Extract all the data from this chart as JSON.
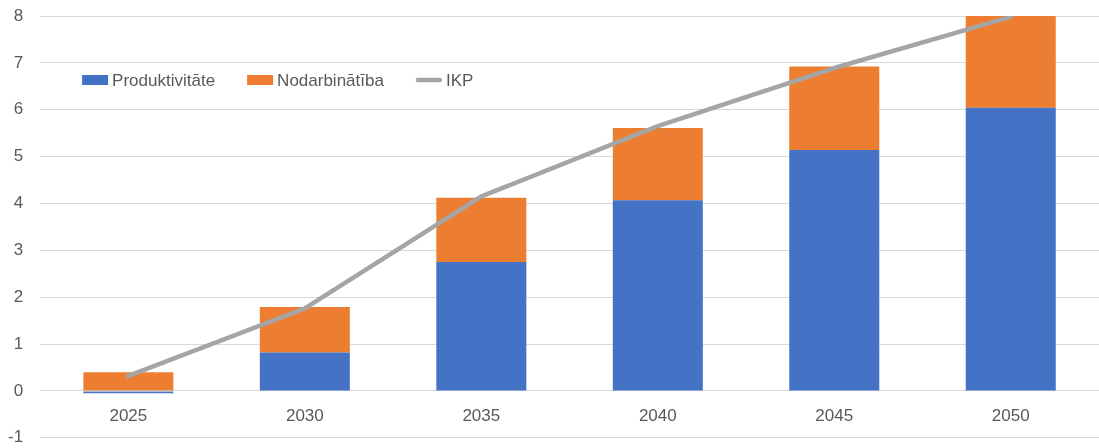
{
  "chart_data": {
    "type": "bar",
    "stacked": true,
    "categories": [
      "2025",
      "2030",
      "2035",
      "2040",
      "2045",
      "2050"
    ],
    "series": [
      {
        "name": "Produktivitāte",
        "color": "#4472c4",
        "values": [
          -0.05,
          0.82,
          2.75,
          4.07,
          5.14,
          6.04
        ]
      },
      {
        "name": "Nodarbinātība",
        "color": "#ed7d31",
        "values": [
          0.4,
          0.97,
          1.37,
          1.54,
          1.78,
          1.96
        ]
      },
      {
        "name": "IKP",
        "type": "line",
        "color": "#a5a5a5",
        "values": [
          0.32,
          1.76,
          4.15,
          5.65,
          6.89,
          7.98
        ]
      }
    ],
    "ylim": [
      -1,
      8
    ],
    "yticks": [
      -1,
      0,
      1,
      2,
      3,
      4,
      5,
      6,
      7,
      8
    ],
    "grid": "y",
    "legend": "top left"
  }
}
